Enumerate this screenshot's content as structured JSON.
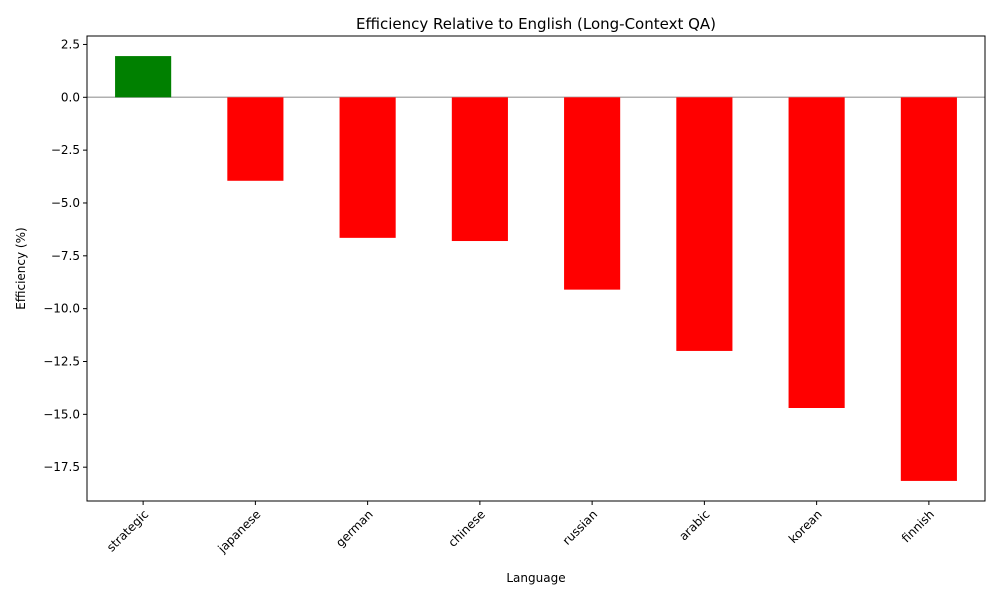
{
  "chart_data": {
    "type": "bar",
    "title": "Efficiency Relative to English (Long-Context QA)",
    "xlabel": "Language",
    "ylabel": "Efficiency (%)",
    "categories": [
      "strategic",
      "japanese",
      "german",
      "chinese",
      "russian",
      "arabic",
      "korean",
      "finnish"
    ],
    "values": [
      1.95,
      -3.95,
      -6.65,
      -6.8,
      -9.1,
      -12.0,
      -14.7,
      -18.15
    ],
    "ylim": [
      -19.1,
      2.9
    ],
    "yticks": [
      2.5,
      0.0,
      -2.5,
      -5.0,
      -7.5,
      -10.0,
      -12.5,
      -15.0,
      -17.5
    ],
    "ytick_labels": [
      "2.5",
      "0.0",
      "−2.5",
      "−5.0",
      "−7.5",
      "−10.0",
      "−12.5",
      "−15.0",
      "−17.5"
    ],
    "grid": false,
    "zero_line": true,
    "colors": {
      "positive": "#008000",
      "negative": "#ff0000",
      "zero_line": "#b0b0b0"
    }
  }
}
